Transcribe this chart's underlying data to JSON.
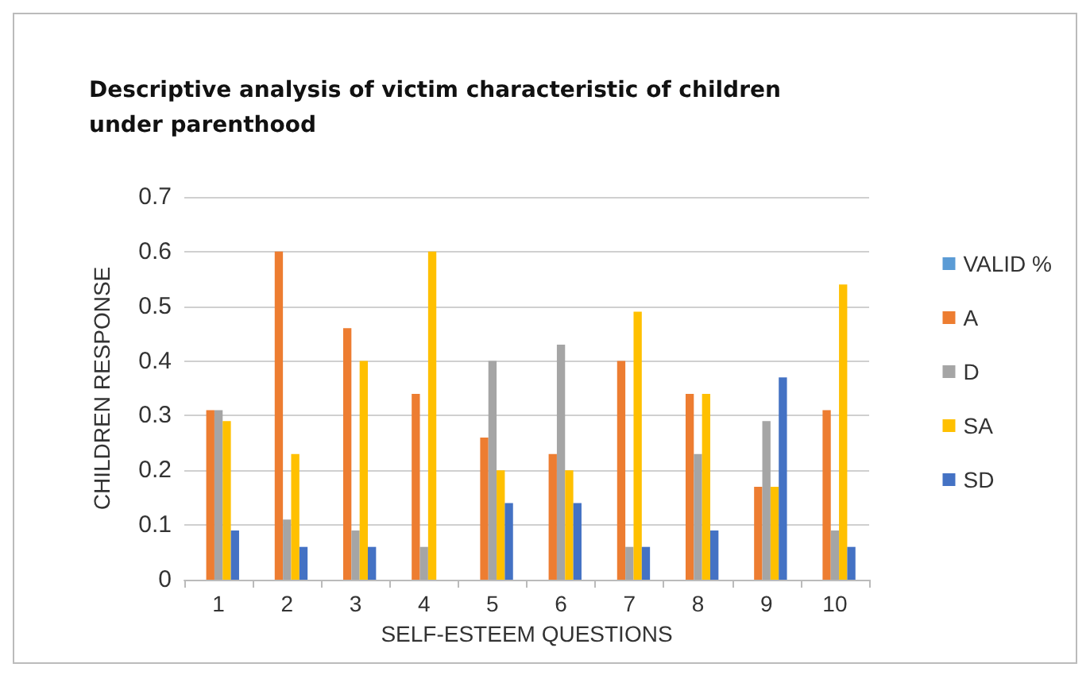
{
  "chart_data": {
    "type": "bar",
    "title": "Descriptive analysis of victim characteristic of children under parenthood",
    "xlabel": "SELF-ESTEEM QUESTIONS",
    "ylabel": "CHILDREN RESPONSE",
    "categories": [
      "1",
      "2",
      "3",
      "4",
      "5",
      "6",
      "7",
      "8",
      "9",
      "10"
    ],
    "series": [
      {
        "name": "VALID %",
        "color": "#5b9bd5",
        "values": [
          null,
          null,
          null,
          null,
          null,
          null,
          null,
          null,
          null,
          null
        ]
      },
      {
        "name": "A",
        "color": "#ed7d31",
        "values": [
          0.31,
          0.6,
          0.46,
          0.34,
          0.26,
          0.23,
          0.4,
          0.34,
          0.17,
          0.31
        ]
      },
      {
        "name": "D",
        "color": "#a5a5a5",
        "values": [
          0.31,
          0.11,
          0.09,
          0.06,
          0.4,
          0.43,
          0.06,
          0.23,
          0.29,
          0.09
        ]
      },
      {
        "name": "SA",
        "color": "#ffc000",
        "values": [
          0.29,
          0.23,
          0.4,
          0.6,
          0.2,
          0.2,
          0.49,
          0.34,
          0.17,
          0.54
        ]
      },
      {
        "name": "SD",
        "color": "#4472c4",
        "values": [
          0.09,
          0.06,
          0.06,
          null,
          0.14,
          0.14,
          0.06,
          0.09,
          0.37,
          0.06
        ]
      }
    ],
    "ylim": [
      0,
      0.7
    ],
    "yticks": [
      0,
      0.1,
      0.2,
      0.3,
      0.4,
      0.5,
      0.6,
      0.7
    ],
    "grid": "y",
    "legend": "right"
  }
}
